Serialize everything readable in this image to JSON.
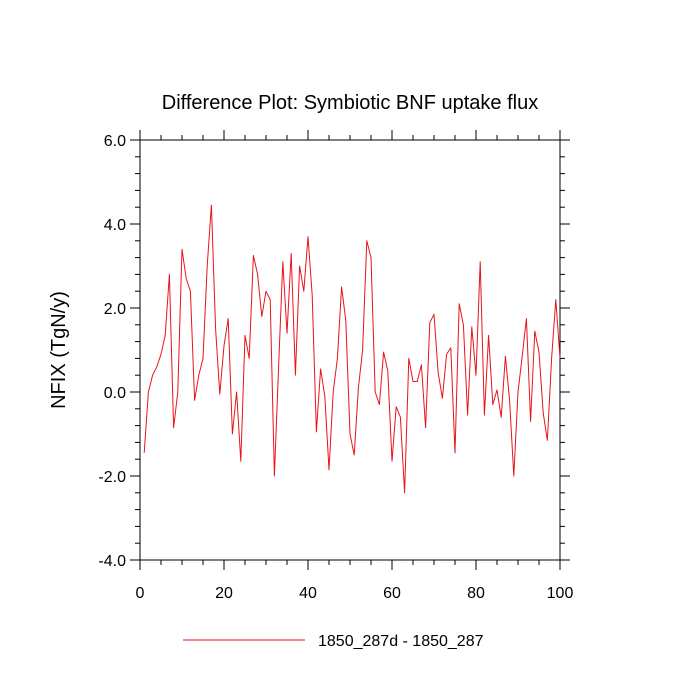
{
  "chart_data": {
    "type": "line",
    "title": "Difference Plot: Symbiotic BNF uptake flux",
    "xlabel": "",
    "ylabel": "NFIX  (TgN/y)",
    "xlim": [
      0,
      100
    ],
    "ylim": [
      -4.0,
      6.0
    ],
    "xticks": [
      0,
      20,
      40,
      60,
      80,
      100
    ],
    "xtick_labels": [
      "0",
      "20",
      "40",
      "60",
      "80",
      "100"
    ],
    "yticks": [
      -4.0,
      -2.0,
      0.0,
      2.0,
      4.0,
      6.0
    ],
    "ytick_labels": [
      "-4.0",
      "-2.0",
      "0.0",
      "2.0",
      "4.0",
      "6.0"
    ],
    "legend_position": "bottom-center",
    "series": [
      {
        "name": "1850_287d - 1850_287",
        "color": "#e8141b",
        "x": [
          1,
          2,
          3,
          4,
          5,
          6,
          7,
          8,
          9,
          10,
          11,
          12,
          13,
          14,
          15,
          16,
          17,
          18,
          19,
          20,
          21,
          22,
          23,
          24,
          25,
          26,
          27,
          28,
          29,
          30,
          31,
          32,
          33,
          34,
          35,
          36,
          37,
          38,
          39,
          40,
          41,
          42,
          43,
          44,
          45,
          46,
          47,
          48,
          49,
          50,
          51,
          52,
          53,
          54,
          55,
          56,
          57,
          58,
          59,
          60,
          61,
          62,
          63,
          64,
          65,
          66,
          67,
          68,
          69,
          70,
          71,
          72,
          73,
          74,
          75,
          76,
          77,
          78,
          79,
          80,
          81,
          82,
          83,
          84,
          85,
          86,
          87,
          88,
          89,
          90,
          91,
          92,
          93,
          94,
          95,
          96,
          97,
          98,
          99,
          100
        ],
        "values": [
          -1.45,
          0.0,
          0.4,
          0.6,
          0.9,
          1.35,
          2.8,
          -0.85,
          0.0,
          3.4,
          2.7,
          2.4,
          -0.2,
          0.4,
          0.8,
          3.0,
          4.45,
          1.5,
          -0.05,
          1.1,
          1.75,
          -1.0,
          0.0,
          -1.65,
          1.35,
          0.8,
          3.25,
          2.8,
          1.8,
          2.4,
          2.2,
          -2.0,
          0.6,
          3.1,
          1.4,
          3.3,
          0.4,
          3.0,
          2.4,
          3.7,
          2.3,
          -0.95,
          0.55,
          -0.1,
          -1.85,
          0.0,
          0.8,
          2.5,
          1.7,
          -1.0,
          -1.5,
          0.1,
          1.0,
          3.6,
          3.2,
          0.0,
          -0.3,
          0.95,
          0.5,
          -1.65,
          -0.35,
          -0.6,
          -2.4,
          0.8,
          0.25,
          0.25,
          0.65,
          -0.85,
          1.65,
          1.85,
          0.45,
          -0.15,
          0.9,
          1.05,
          -1.45,
          2.1,
          1.6,
          -0.55,
          1.55,
          0.4,
          3.1,
          -0.55,
          1.35,
          -0.3,
          0.05,
          -0.6,
          0.85,
          -0.2,
          -2.0,
          0.0,
          0.85,
          1.75,
          -0.7,
          1.45,
          0.95,
          -0.5,
          -1.15,
          0.8,
          2.2,
          0.8
        ]
      }
    ]
  }
}
